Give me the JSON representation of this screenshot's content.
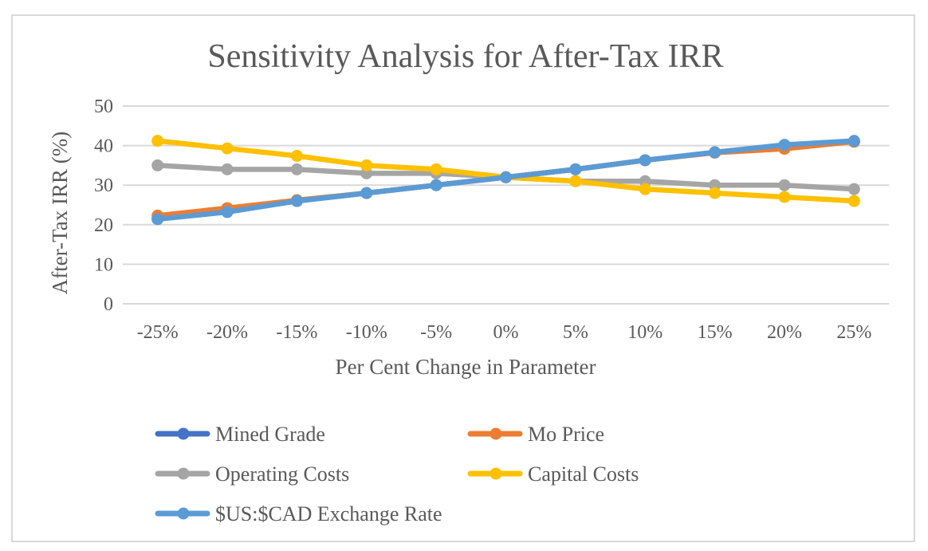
{
  "chart_data": {
    "type": "line",
    "title": "Sensitivity Analysis for After-Tax IRR",
    "xlabel": "Per Cent Change in Parameter",
    "ylabel": "After-Tax IRR (%)",
    "ylim": [
      0,
      50
    ],
    "yticks": [
      "0",
      "10",
      "20",
      "30",
      "40",
      "50"
    ],
    "ytick_values": [
      0,
      10,
      20,
      30,
      40,
      50
    ],
    "categories": [
      "-25%",
      "-20%",
      "-15%",
      "-10%",
      "-5%",
      "0%",
      "5%",
      "10%",
      "15%",
      "20%",
      "25%"
    ],
    "grid": "horizontal",
    "legend_position": "bottom",
    "series": [
      {
        "name": "Mined Grade",
        "color": "#4472C4",
        "values": [
          21.5,
          23.3,
          26,
          28,
          30,
          32,
          34,
          36.3,
          38.3,
          40,
          41
        ]
      },
      {
        "name": "Mo Price",
        "color": "#ED7D31",
        "values": [
          22.3,
          24.2,
          26.2,
          28,
          30,
          32,
          34,
          36.3,
          38.2,
          39.2,
          41
        ]
      },
      {
        "name": "Operating Costs",
        "color": "#A5A5A5",
        "values": [
          35,
          34,
          34,
          33,
          33,
          32,
          31,
          31,
          30,
          30,
          29
        ]
      },
      {
        "name": "Capital Costs",
        "color": "#FFC000",
        "values": [
          41.2,
          39.3,
          37.4,
          35,
          34,
          32,
          31,
          29,
          28,
          27,
          26
        ]
      },
      {
        "name": "$US:$CAD Exchange Rate",
        "color": "#5B9BD5",
        "values": [
          21.4,
          23.2,
          26,
          28,
          30,
          32,
          34,
          36.3,
          38.3,
          40.2,
          41.2
        ]
      }
    ]
  }
}
